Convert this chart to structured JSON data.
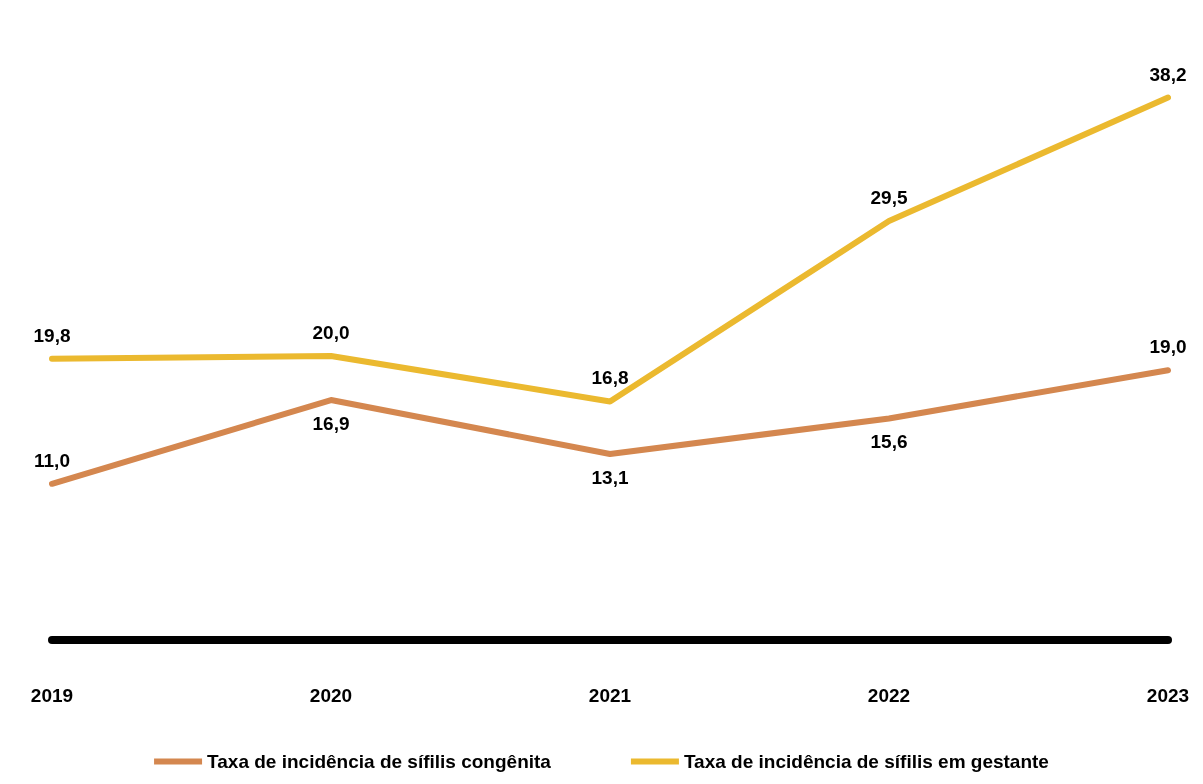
{
  "chart_data": {
    "type": "line",
    "categories": [
      "2019",
      "2020",
      "2021",
      "2022",
      "2023"
    ],
    "series": [
      {
        "name": "Taxa de incidência de sífilis congênita",
        "color": "#d4874f",
        "values": [
          11.0,
          16.9,
          13.1,
          15.6,
          19.0
        ],
        "value_labels": [
          "11,0",
          "16,9",
          "13,1",
          "15,6",
          "19,0"
        ]
      },
      {
        "name": "Taxa de incidência de sífilis em gestante",
        "color": "#ebb92f",
        "values": [
          19.8,
          20.0,
          16.8,
          29.5,
          38.2
        ],
        "value_labels": [
          "19,8",
          "20,0",
          "16,8",
          "29,5",
          "38,2"
        ]
      }
    ],
    "legend": "bottom",
    "grid": false,
    "marker": "none",
    "line_style": "solid"
  }
}
